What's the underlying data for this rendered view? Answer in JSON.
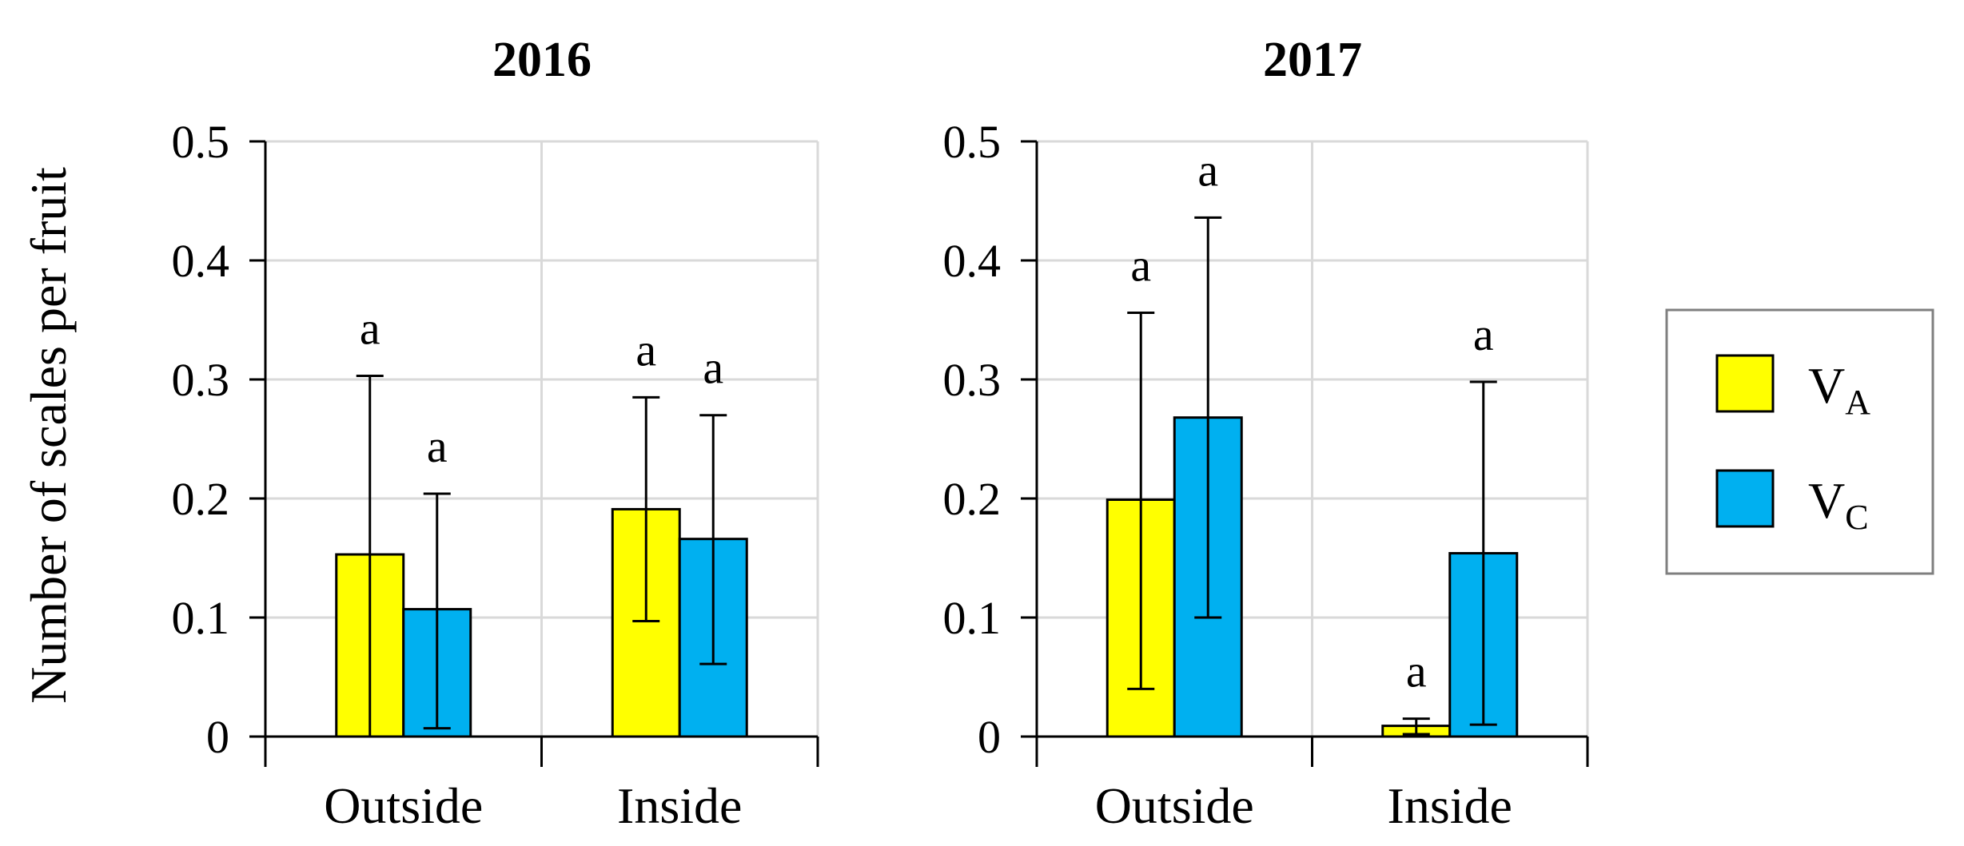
{
  "ylabel": "Number of scales per fruit",
  "chart_data": [
    {
      "type": "bar",
      "title": "2016",
      "categories": [
        "Outside",
        "Inside"
      ],
      "ylim": [
        0,
        0.5
      ],
      "yticks": [
        "0",
        "0.1",
        "0.2",
        "0.3",
        "0.4",
        "0.5"
      ],
      "grid": true,
      "series": [
        {
          "name": "VA",
          "color": "#FFFF00",
          "values": [
            0.153,
            0.191
          ],
          "err_low": [
            0.0,
            0.097
          ],
          "err_high": [
            0.303,
            0.285
          ],
          "labels": [
            "a",
            "a"
          ]
        },
        {
          "name": "VC",
          "color": "#00B0F0",
          "values": [
            0.107,
            0.166
          ],
          "err_low": [
            0.007,
            0.061
          ],
          "err_high": [
            0.204,
            0.27
          ],
          "labels": [
            "a",
            "a"
          ]
        }
      ]
    },
    {
      "type": "bar",
      "title": "2017",
      "categories": [
        "Outside",
        "Inside"
      ],
      "ylim": [
        0,
        0.5
      ],
      "yticks": [
        "0",
        "0.1",
        "0.2",
        "0.3",
        "0.4",
        "0.5"
      ],
      "grid": true,
      "series": [
        {
          "name": "VA",
          "color": "#FFFF00",
          "values": [
            0.199,
            0.009
          ],
          "err_low": [
            0.04,
            0.002
          ],
          "err_high": [
            0.356,
            0.015
          ],
          "labels": [
            "a",
            "a"
          ]
        },
        {
          "name": "VC",
          "color": "#00B0F0",
          "values": [
            0.268,
            0.154
          ],
          "err_low": [
            0.1,
            0.01
          ],
          "err_high": [
            0.436,
            0.298
          ],
          "labels": [
            "a",
            "a"
          ]
        }
      ]
    }
  ],
  "legend": {
    "position": "right",
    "items": [
      {
        "letter": "V",
        "sub": "A",
        "color": "#FFFF00"
      },
      {
        "letter": "V",
        "sub": "C",
        "color": "#00B0F0"
      }
    ]
  }
}
